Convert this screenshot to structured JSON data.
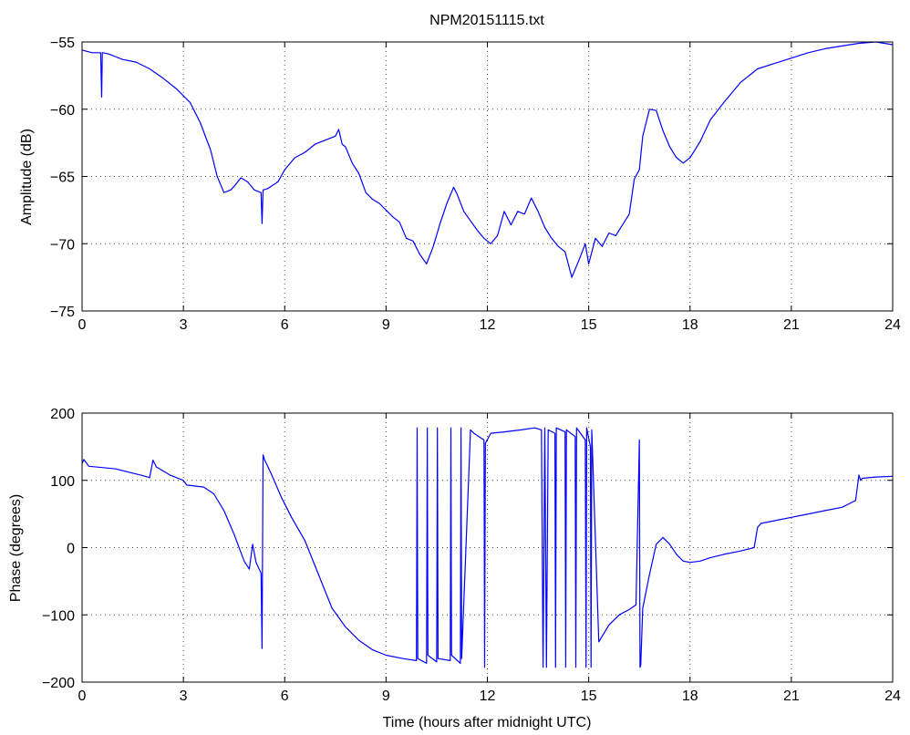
{
  "chart_data": [
    {
      "type": "line",
      "title": "NPM20151115.txt",
      "xlabel": "",
      "ylabel": "Amplitude (dB)",
      "xlim": [
        0,
        24
      ],
      "ylim": [
        -75,
        -55
      ],
      "xticks": [
        0,
        3,
        6,
        9,
        12,
        15,
        18,
        21,
        24
      ],
      "yticks": [
        -75,
        -70,
        -65,
        -60,
        -55
      ],
      "xtick_labels": [
        "0",
        "3",
        "6",
        "9",
        "12",
        "15",
        "18",
        "21",
        "24"
      ],
      "ytick_labels": [
        "−75",
        "−70",
        "−65",
        "−60",
        "−55"
      ],
      "grid": true,
      "color": "#0000ff",
      "series": [
        {
          "x": [
            0,
            0.3,
            0.55,
            0.58,
            0.6,
            0.62,
            0.8,
            1.2,
            1.6,
            2.0,
            2.4,
            2.8,
            3.2,
            3.5,
            3.8,
            4.0,
            4.2,
            4.4,
            4.55,
            4.7,
            4.9,
            5.1,
            5.3,
            5.33,
            5.36,
            5.5,
            5.8,
            6.0,
            6.3,
            6.6,
            6.9,
            7.2,
            7.5,
            7.6,
            7.7,
            7.8,
            8.0,
            8.2,
            8.4,
            8.6,
            8.8,
            9.0,
            9.2,
            9.4,
            9.6,
            9.8,
            10.0,
            10.2,
            10.4,
            10.6,
            10.8,
            11.0,
            11.1,
            11.3,
            11.5,
            11.7,
            11.9,
            12.1,
            12.3,
            12.5,
            12.7,
            12.9,
            13.1,
            13.3,
            13.5,
            13.7,
            13.9,
            14.1,
            14.3,
            14.5,
            14.7,
            14.9,
            15.0,
            15.2,
            15.4,
            15.6,
            15.8,
            16.0,
            16.2,
            16.35,
            16.5,
            16.6,
            16.8,
            17.0,
            17.2,
            17.4,
            17.6,
            17.8,
            18.0,
            18.3,
            18.6,
            19.0,
            19.5,
            20.0,
            20.5,
            21.0,
            21.5,
            22.0,
            22.5,
            23.0,
            23.5,
            24.0
          ],
          "y": [
            -55.6,
            -55.8,
            -55.8,
            -59.1,
            -55.8,
            -55.8,
            -55.9,
            -56.3,
            -56.5,
            -57.0,
            -57.7,
            -58.5,
            -59.5,
            -61.0,
            -63.0,
            -65.0,
            -66.2,
            -66.0,
            -65.6,
            -65.1,
            -65.4,
            -66.0,
            -66.2,
            -68.5,
            -66.0,
            -65.9,
            -65.4,
            -64.5,
            -63.6,
            -63.2,
            -62.6,
            -62.3,
            -62.0,
            -61.5,
            -62.6,
            -62.8,
            -64.0,
            -64.8,
            -66.2,
            -66.7,
            -67.0,
            -67.5,
            -68.0,
            -68.4,
            -69.6,
            -69.8,
            -70.8,
            -71.5,
            -70.2,
            -68.5,
            -67.0,
            -65.8,
            -66.3,
            -67.6,
            -68.3,
            -69.0,
            -69.6,
            -70.0,
            -69.4,
            -67.6,
            -68.6,
            -67.6,
            -67.8,
            -66.6,
            -67.6,
            -68.8,
            -69.6,
            -70.2,
            -70.6,
            -72.5,
            -71.3,
            -70.0,
            -71.5,
            -69.6,
            -70.2,
            -69.2,
            -69.4,
            -68.6,
            -67.8,
            -65.2,
            -64.5,
            -62.0,
            -60.0,
            -60.1,
            -61.6,
            -62.8,
            -63.6,
            -64.0,
            -63.6,
            -62.4,
            -60.8,
            -59.5,
            -58.0,
            -57.0,
            -56.6,
            -56.2,
            -55.8,
            -55.5,
            -55.3,
            -55.1,
            -55.0,
            -55.2
          ]
        }
      ]
    },
    {
      "type": "line",
      "title": "",
      "xlabel": "Time (hours after midnight UTC)",
      "ylabel": "Phase (degrees)",
      "xlim": [
        0,
        24
      ],
      "ylim": [
        -200,
        200
      ],
      "xticks": [
        0,
        3,
        6,
        9,
        12,
        15,
        18,
        21,
        24
      ],
      "yticks": [
        -200,
        -100,
        0,
        100,
        200
      ],
      "xtick_labels": [
        "0",
        "3",
        "6",
        "9",
        "12",
        "15",
        "18",
        "21",
        "24"
      ],
      "ytick_labels": [
        "−200",
        "−100",
        "0",
        "100",
        "200"
      ],
      "grid": true,
      "color": "#0000ff",
      "series": [
        {
          "x": [
            0,
            0.05,
            0.2,
            0.6,
            1.0,
            1.4,
            1.8,
            2.0,
            2.1,
            2.2,
            2.6,
            3.0,
            3.1,
            3.6,
            3.9,
            4.2,
            4.5,
            4.8,
            4.95,
            5.05,
            5.15,
            5.3,
            5.33,
            5.36,
            5.4,
            5.6,
            5.9,
            6.2,
            6.6,
            7.0,
            7.4,
            7.8,
            8.2,
            8.6,
            9.0,
            9.5,
            9.9,
            9.92,
            9.94,
            10.2,
            10.22,
            10.24,
            10.5,
            10.52,
            10.54,
            10.9,
            10.92,
            10.94,
            11.2,
            11.22,
            11.24,
            11.5,
            11.6,
            11.9,
            11.92,
            11.94,
            12.1,
            12.5,
            13.0,
            13.4,
            13.6,
            13.65,
            13.7,
            13.75,
            13.8,
            14.0,
            14.02,
            14.04,
            14.3,
            14.32,
            14.34,
            14.6,
            14.62,
            14.64,
            14.9,
            14.92,
            14.94,
            15.05,
            15.07,
            15.09,
            15.3,
            15.6,
            15.9,
            16.2,
            16.4,
            16.5,
            16.52,
            16.54,
            16.6,
            16.8,
            17.0,
            17.2,
            17.4,
            17.6,
            17.8,
            18.0,
            18.3,
            18.6,
            19.0,
            19.5,
            19.9,
            20.0,
            20.05,
            20.1,
            20.5,
            21.0,
            21.5,
            22.0,
            22.5,
            22.9,
            23.0,
            23.05,
            23.1,
            23.5,
            24.0
          ],
          "y": [
            125,
            131,
            121,
            119,
            117,
            112,
            107,
            104,
            130,
            120,
            108,
            100,
            93,
            90,
            80,
            55,
            20,
            -20,
            -32,
            5,
            -22,
            -38,
            -150,
            138,
            131,
            110,
            75,
            45,
            10,
            -40,
            -90,
            -118,
            -138,
            -152,
            -160,
            -165,
            -168,
            178,
            -165,
            -172,
            178,
            -160,
            -170,
            178,
            -165,
            -168,
            178,
            -160,
            -172,
            178,
            -165,
            175,
            170,
            160,
            -178,
            155,
            170,
            172,
            175,
            178,
            175,
            -178,
            178,
            -178,
            175,
            170,
            -178,
            178,
            172,
            -178,
            175,
            165,
            -178,
            178,
            160,
            -178,
            178,
            150,
            -178,
            175,
            -140,
            -115,
            -100,
            -92,
            -85,
            160,
            -178,
            -175,
            -90,
            -40,
            5,
            15,
            5,
            -10,
            -20,
            -22,
            -20,
            -15,
            -10,
            -5,
            0,
            30,
            33,
            36,
            40,
            45,
            50,
            55,
            60,
            70,
            108,
            100,
            103,
            105,
            106
          ]
        }
      ]
    }
  ]
}
